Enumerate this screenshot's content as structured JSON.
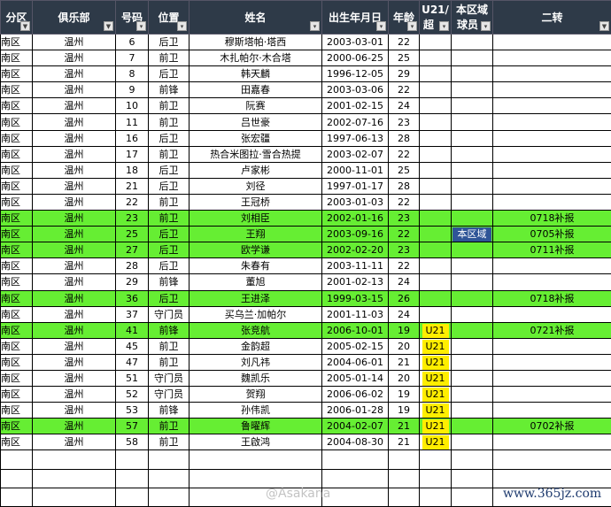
{
  "headers": [
    "分区",
    "俱乐部",
    "号码",
    "位置",
    "姓名",
    "出生年月日",
    "年龄",
    "U21/超",
    "本区域球员",
    "二转"
  ],
  "header_lines": {
    "u21": [
      "U21/",
      "超"
    ],
    "region": [
      "本区域",
      "球员"
    ]
  },
  "filter_icons": [
    "funnel",
    "funnel",
    "dropdown",
    "dropdown",
    "dropdown",
    "dropdown",
    "dropdown",
    "dropdown",
    "dropdown",
    "funnel"
  ],
  "colors": {
    "header": "#2e3a48",
    "highlight": "#66ee33",
    "u21": "#ffee00",
    "region": "#2f5597"
  },
  "rows": [
    {
      "zone": "南区",
      "club": "温州",
      "no": "6",
      "pos": "后卫",
      "name": "穆斯塔帕·塔西",
      "dob": "2003-03-01",
      "age": "22",
      "u21": "",
      "region": "",
      "transfer": "",
      "hl": false
    },
    {
      "zone": "南区",
      "club": "温州",
      "no": "7",
      "pos": "前卫",
      "name": "木扎帕尔·木合塔",
      "dob": "2000-06-25",
      "age": "25",
      "u21": "",
      "region": "",
      "transfer": "",
      "hl": false
    },
    {
      "zone": "南区",
      "club": "温州",
      "no": "8",
      "pos": "后卫",
      "name": "韩天麟",
      "dob": "1996-12-05",
      "age": "29",
      "u21": "",
      "region": "",
      "transfer": "",
      "hl": false
    },
    {
      "zone": "南区",
      "club": "温州",
      "no": "9",
      "pos": "前锋",
      "name": "田嘉春",
      "dob": "2003-03-06",
      "age": "22",
      "u21": "",
      "region": "",
      "transfer": "",
      "hl": false
    },
    {
      "zone": "南区",
      "club": "温州",
      "no": "10",
      "pos": "前卫",
      "name": "阮赛",
      "dob": "2001-02-15",
      "age": "24",
      "u21": "",
      "region": "",
      "transfer": "",
      "hl": false
    },
    {
      "zone": "南区",
      "club": "温州",
      "no": "11",
      "pos": "前卫",
      "name": "吕世豪",
      "dob": "2002-07-16",
      "age": "23",
      "u21": "",
      "region": "",
      "transfer": "",
      "hl": false
    },
    {
      "zone": "南区",
      "club": "温州",
      "no": "16",
      "pos": "后卫",
      "name": "张宏疆",
      "dob": "1997-06-13",
      "age": "28",
      "u21": "",
      "region": "",
      "transfer": "",
      "hl": false
    },
    {
      "zone": "南区",
      "club": "温州",
      "no": "17",
      "pos": "前卫",
      "name": "热合米图拉·雪合热提",
      "dob": "2003-02-07",
      "age": "22",
      "u21": "",
      "region": "",
      "transfer": "",
      "hl": false
    },
    {
      "zone": "南区",
      "club": "温州",
      "no": "18",
      "pos": "后卫",
      "name": "卢家彬",
      "dob": "2000-11-01",
      "age": "25",
      "u21": "",
      "region": "",
      "transfer": "",
      "hl": false
    },
    {
      "zone": "南区",
      "club": "温州",
      "no": "21",
      "pos": "后卫",
      "name": "刘径",
      "dob": "1997-01-17",
      "age": "28",
      "u21": "",
      "region": "",
      "transfer": "",
      "hl": false
    },
    {
      "zone": "南区",
      "club": "温州",
      "no": "22",
      "pos": "前卫",
      "name": "王冠桥",
      "dob": "2003-01-03",
      "age": "22",
      "u21": "",
      "region": "",
      "transfer": "",
      "hl": false
    },
    {
      "zone": "南区",
      "club": "温州",
      "no": "23",
      "pos": "前卫",
      "name": "刘相臣",
      "dob": "2002-01-16",
      "age": "23",
      "u21": "",
      "region": "",
      "transfer": "0718补报",
      "hl": true
    },
    {
      "zone": "南区",
      "club": "温州",
      "no": "25",
      "pos": "后卫",
      "name": "王翔",
      "dob": "2003-09-16",
      "age": "22",
      "u21": "",
      "region": "本区域",
      "transfer": "0705补报",
      "hl": true
    },
    {
      "zone": "南区",
      "club": "温州",
      "no": "27",
      "pos": "后卫",
      "name": "欧学谦",
      "dob": "2002-02-20",
      "age": "23",
      "u21": "",
      "region": "",
      "transfer": "0711补报",
      "hl": true
    },
    {
      "zone": "南区",
      "club": "温州",
      "no": "28",
      "pos": "后卫",
      "name": "朱春有",
      "dob": "2003-11-11",
      "age": "22",
      "u21": "",
      "region": "",
      "transfer": "",
      "hl": false
    },
    {
      "zone": "南区",
      "club": "温州",
      "no": "29",
      "pos": "前锋",
      "name": "董旭",
      "dob": "2001-02-13",
      "age": "24",
      "u21": "",
      "region": "",
      "transfer": "",
      "hl": false
    },
    {
      "zone": "南区",
      "club": "温州",
      "no": "36",
      "pos": "后卫",
      "name": "王进泽",
      "dob": "1999-03-15",
      "age": "26",
      "u21": "",
      "region": "",
      "transfer": "0718补报",
      "hl": true
    },
    {
      "zone": "南区",
      "club": "温州",
      "no": "37",
      "pos": "守门员",
      "name": "买乌兰·加帕尔",
      "dob": "2001-11-03",
      "age": "24",
      "u21": "",
      "region": "",
      "transfer": "",
      "hl": false
    },
    {
      "zone": "南区",
      "club": "温州",
      "no": "41",
      "pos": "前锋",
      "name": "张竞航",
      "dob": "2006-10-01",
      "age": "19",
      "u21": "U21",
      "region": "",
      "transfer": "0721补报",
      "hl": true
    },
    {
      "zone": "南区",
      "club": "温州",
      "no": "45",
      "pos": "前卫",
      "name": "金韵超",
      "dob": "2005-02-15",
      "age": "20",
      "u21": "U21",
      "region": "",
      "transfer": "",
      "hl": false
    },
    {
      "zone": "南区",
      "club": "温州",
      "no": "47",
      "pos": "前卫",
      "name": "刘凡祎",
      "dob": "2004-06-01",
      "age": "21",
      "u21": "U21",
      "region": "",
      "transfer": "",
      "hl": false
    },
    {
      "zone": "南区",
      "club": "温州",
      "no": "51",
      "pos": "守门员",
      "name": "魏凯乐",
      "dob": "2005-01-14",
      "age": "20",
      "u21": "U21",
      "region": "",
      "transfer": "",
      "hl": false
    },
    {
      "zone": "南区",
      "club": "温州",
      "no": "52",
      "pos": "守门员",
      "name": "贺翔",
      "dob": "2006-06-02",
      "age": "19",
      "u21": "U21",
      "region": "",
      "transfer": "",
      "hl": false
    },
    {
      "zone": "南区",
      "club": "温州",
      "no": "53",
      "pos": "前锋",
      "name": "孙伟凯",
      "dob": "2006-01-28",
      "age": "19",
      "u21": "U21",
      "region": "",
      "transfer": "",
      "hl": false
    },
    {
      "zone": "南区",
      "club": "温州",
      "no": "57",
      "pos": "前卫",
      "name": "鲁曜辉",
      "dob": "2004-02-07",
      "age": "21",
      "u21": "U21",
      "region": "",
      "transfer": "0702补报",
      "hl": true
    },
    {
      "zone": "南区",
      "club": "温州",
      "no": "58",
      "pos": "前卫",
      "name": "王啟鸿",
      "dob": "2004-08-30",
      "age": "21",
      "u21": "U21",
      "region": "",
      "transfer": "",
      "hl": false
    }
  ],
  "watermarks": {
    "weibo": "@Asakana",
    "site": "www.365jz.com"
  }
}
